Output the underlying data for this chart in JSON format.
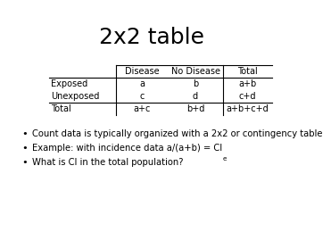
{
  "title": "2x2 table",
  "title_fontsize": 18,
  "background_color": "#ffffff",
  "table": {
    "col_headers": [
      "",
      "Disease",
      "No Disease",
      "Total"
    ],
    "rows": [
      [
        "Exposed",
        "a",
        "b",
        "a+b"
      ],
      [
        "Unexposed",
        "c",
        "d",
        "c+d"
      ],
      [
        "Total",
        "a+c",
        "b+d",
        "a+b+c+d"
      ]
    ]
  },
  "bullets": [
    "Count data is typically organized with a 2x2 or contingency table",
    "Example: with incidence data a/(a+b) = CI",
    "What is CI in the total population?"
  ],
  "bullet_subscript_idx": 1,
  "bullet_subscript_char": "e",
  "bullet_fontsize": 7.2,
  "table_fontsize": 7.0,
  "text_color": "#000000"
}
